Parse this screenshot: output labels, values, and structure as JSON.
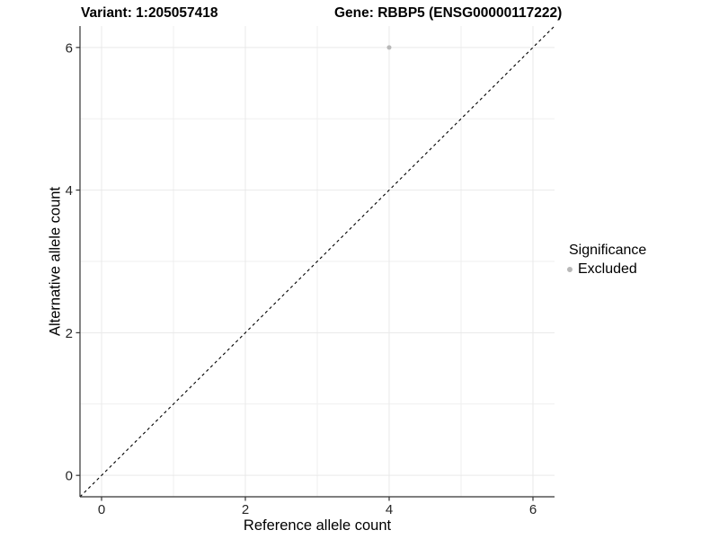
{
  "titles": {
    "variant": "Variant: 1:205057418",
    "gene": "Gene: RBBP5 (ENSG00000117222)"
  },
  "legend": {
    "title": "Significance",
    "items": [
      {
        "label": "Excluded",
        "color": "#b8b8b8"
      }
    ]
  },
  "chart_data": {
    "type": "scatter",
    "title": "",
    "xlabel": "Reference allele count",
    "ylabel": "Alternative allele count",
    "xlim": [
      -0.3,
      6.3
    ],
    "ylim": [
      -0.3,
      6.3
    ],
    "xticks": [
      0,
      2,
      4,
      6
    ],
    "yticks": [
      0,
      2,
      4,
      6
    ],
    "xticks_minor": [
      1,
      3,
      5
    ],
    "yticks_minor": [
      1,
      3,
      5
    ],
    "grid": "major+minor",
    "legend_position": "right-middle",
    "series": [
      {
        "name": "Excluded",
        "color": "#b8b8b8",
        "marker": "circle",
        "points": [
          {
            "x": 4,
            "y": 6
          }
        ]
      }
    ],
    "reference_line": {
      "kind": "y=x",
      "style": "dashed",
      "color": "#000000"
    }
  },
  "colors": {
    "background": "#ffffff",
    "axis_line": "#333333",
    "tick_label": "#262626",
    "grid_major": "#e9e9e9",
    "grid_minor": "#efefef"
  }
}
